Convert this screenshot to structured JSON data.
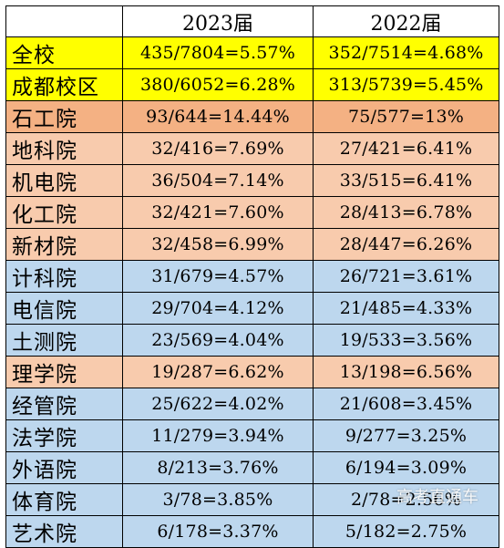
{
  "header": {
    "corner": "",
    "col1": "2023届",
    "col2": "2022届"
  },
  "colors": {
    "yellow": "#ffff00",
    "orange": "#f4b183",
    "peach": "#f8cbad",
    "blue": "#bdd7ee"
  },
  "rows": [
    {
      "name": "全校",
      "v2023": "435/7804=5.57%",
      "v2022": "352/7514=4.68%",
      "fill": "yellow"
    },
    {
      "name": "成都校区",
      "v2023": "380/6052=6.28%",
      "v2022": "313/5739=5.45%",
      "fill": "yellow"
    },
    {
      "name": "石工院",
      "v2023": "93/644=14.44%",
      "v2022": "75/577=13%",
      "fill": "orange"
    },
    {
      "name": "地科院",
      "v2023": "32/416=7.69%",
      "v2022": "27/421=6.41%",
      "fill": "peach"
    },
    {
      "name": "机电院",
      "v2023": "36/504=7.14%",
      "v2022": "33/515=6.41%",
      "fill": "peach"
    },
    {
      "name": "化工院",
      "v2023": "32/421=7.60%",
      "v2022": "28/413=6.78%",
      "fill": "peach"
    },
    {
      "name": "新材院",
      "v2023": "32/458=6.99%",
      "v2022": "28/447=6.26%",
      "fill": "peach"
    },
    {
      "name": "计科院",
      "v2023": "31/679=4.57%",
      "v2022": "26/721=3.61%",
      "fill": "blue"
    },
    {
      "name": "电信院",
      "v2023": "29/704=4.12%",
      "v2022": "21/485=4.33%",
      "fill": "blue"
    },
    {
      "name": "土测院",
      "v2023": "23/569=4.04%",
      "v2022": "19/533=3.56%",
      "fill": "blue"
    },
    {
      "name": "理学院",
      "v2023": "19/287=6.62%",
      "v2022": "13/198=6.56%",
      "fill": "peach"
    },
    {
      "name": "经管院",
      "v2023": "25/622=4.02%",
      "v2022": "21/608=3.45%",
      "fill": "blue"
    },
    {
      "name": "法学院",
      "v2023": "11/279=3.94%",
      "v2022": "9/277=3.25%",
      "fill": "blue"
    },
    {
      "name": "外语院",
      "v2023": "8/213=3.76%",
      "v2022": "6/194=3.09%",
      "fill": "blue"
    },
    {
      "name": "体育院",
      "v2023": "3/78=3.85%",
      "v2022": "2/78=2.56%",
      "fill": "blue"
    },
    {
      "name": "艺术院",
      "v2023": "6/178=3.37%",
      "v2022": "5/182=2.75%",
      "fill": "blue"
    }
  ],
  "watermark": "高考直通车"
}
